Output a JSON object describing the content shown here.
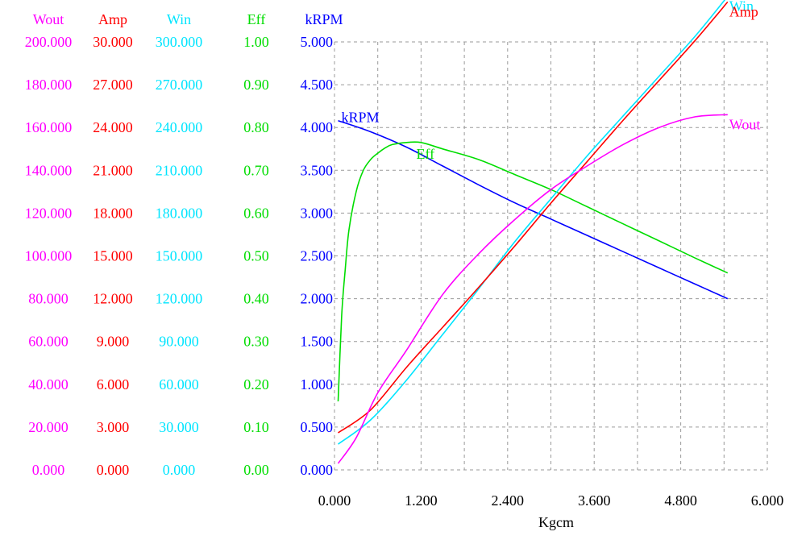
{
  "chart_data": {
    "type": "line",
    "xlabel": "Kgcm",
    "xlim": [
      0,
      6
    ],
    "x_ticks": [
      "0.000",
      "1.200",
      "2.400",
      "3.600",
      "4.800",
      "6.000"
    ],
    "x_tick_values": [
      0,
      1.2,
      2.4,
      3.6,
      4.8,
      6.0
    ],
    "grid": true,
    "axes": [
      {
        "key": "Wout",
        "label": "Wout",
        "color": "#ff00ff",
        "ylim": [
          0,
          200
        ],
        "ticks": [
          "0.000",
          "20.000",
          "40.000",
          "60.000",
          "80.000",
          "100.000",
          "120.000",
          "140.000",
          "160.000",
          "180.000",
          "200.000"
        ]
      },
      {
        "key": "Amp",
        "label": "Amp",
        "color": "#ff0000",
        "ylim": [
          0,
          30
        ],
        "ticks": [
          "0.000",
          "3.000",
          "6.000",
          "9.000",
          "12.000",
          "15.000",
          "18.000",
          "21.000",
          "24.000",
          "27.000",
          "30.000"
        ]
      },
      {
        "key": "Win",
        "label": "Win",
        "color": "#00e5ff",
        "ylim": [
          0,
          300
        ],
        "ticks": [
          "0.000",
          "30.000",
          "60.000",
          "90.000",
          "120.000",
          "150.000",
          "180.000",
          "210.000",
          "240.000",
          "270.000",
          "300.000"
        ]
      },
      {
        "key": "Eff",
        "label": "Eff",
        "color": "#00dd00",
        "ylim": [
          0,
          1
        ],
        "ticks": [
          "0.00",
          "0.10",
          "0.20",
          "0.30",
          "0.40",
          "0.50",
          "0.60",
          "0.70",
          "0.80",
          "0.90",
          "1.00"
        ]
      },
      {
        "key": "kRPM",
        "label": "kRPM",
        "color": "#0000ff",
        "ylim": [
          0,
          5
        ],
        "ticks": [
          "0.000",
          "0.500",
          "1.000",
          "1.500",
          "2.000",
          "2.500",
          "3.000",
          "3.500",
          "4.000",
          "4.500",
          "5.000"
        ]
      }
    ],
    "series": [
      {
        "name": "kRPM",
        "axis": "kRPM",
        "color": "#0000ff",
        "points": [
          [
            0.05,
            4.08
          ],
          [
            0.5,
            3.95
          ],
          [
            1.0,
            3.77
          ],
          [
            1.5,
            3.55
          ],
          [
            2.0,
            3.33
          ],
          [
            2.5,
            3.12
          ],
          [
            3.0,
            2.93
          ],
          [
            3.5,
            2.74
          ],
          [
            4.0,
            2.55
          ],
          [
            4.5,
            2.36
          ],
          [
            5.0,
            2.17
          ],
          [
            5.45,
            2.0
          ]
        ]
      },
      {
        "name": "Eff",
        "axis": "Eff",
        "color": "#00dd00",
        "points": [
          [
            0.05,
            0.16
          ],
          [
            0.1,
            0.36
          ],
          [
            0.15,
            0.47
          ],
          [
            0.2,
            0.56
          ],
          [
            0.3,
            0.65
          ],
          [
            0.4,
            0.7
          ],
          [
            0.5,
            0.725
          ],
          [
            0.6,
            0.74
          ],
          [
            0.7,
            0.752
          ],
          [
            0.8,
            0.76
          ],
          [
            1.0,
            0.765
          ],
          [
            1.2,
            0.765
          ],
          [
            1.5,
            0.75
          ],
          [
            2.0,
            0.725
          ],
          [
            2.5,
            0.69
          ],
          [
            3.0,
            0.655
          ],
          [
            3.5,
            0.615
          ],
          [
            4.0,
            0.575
          ],
          [
            4.5,
            0.535
          ],
          [
            5.0,
            0.495
          ],
          [
            5.45,
            0.46
          ]
        ]
      },
      {
        "name": "Win",
        "axis": "Win",
        "color": "#00e5ff",
        "points": [
          [
            0.05,
            18
          ],
          [
            0.5,
            35
          ],
          [
            1.0,
            63
          ],
          [
            1.5,
            95
          ],
          [
            2.0,
            127
          ],
          [
            2.5,
            160
          ],
          [
            3.0,
            190
          ],
          [
            3.5,
            220
          ],
          [
            4.0,
            248
          ],
          [
            4.5,
            276
          ],
          [
            5.0,
            304
          ],
          [
            5.45,
            332
          ]
        ]
      },
      {
        "name": "Amp",
        "axis": "Amp",
        "color": "#ff0000",
        "points": [
          [
            0.05,
            2.6
          ],
          [
            0.5,
            4.2
          ],
          [
            1.0,
            7.2
          ],
          [
            1.5,
            10.0
          ],
          [
            2.0,
            12.8
          ],
          [
            2.5,
            15.7
          ],
          [
            3.0,
            18.7
          ],
          [
            3.5,
            21.6
          ],
          [
            4.0,
            24.5
          ],
          [
            4.5,
            27.3
          ],
          [
            5.0,
            30.1
          ],
          [
            5.45,
            32.8
          ]
        ]
      },
      {
        "name": "Wout",
        "axis": "Wout",
        "color": "#ff00ff",
        "points": [
          [
            0.05,
            3
          ],
          [
            0.3,
            15
          ],
          [
            0.6,
            36
          ],
          [
            1.0,
            56
          ],
          [
            1.5,
            82
          ],
          [
            2.0,
            101
          ],
          [
            2.5,
            117
          ],
          [
            3.0,
            131
          ],
          [
            3.5,
            142
          ],
          [
            4.0,
            152
          ],
          [
            4.5,
            160
          ],
          [
            5.0,
            165
          ],
          [
            5.45,
            166
          ]
        ]
      }
    ],
    "curve_labels": [
      {
        "text": "kRPM",
        "color": "#0000ff",
        "series": "kRPM",
        "position": "start"
      },
      {
        "text": "Eff",
        "color": "#00dd00",
        "series": "Eff",
        "position": "peak"
      },
      {
        "text": "Win",
        "color": "#00e5ff",
        "series": "Win",
        "position": "end"
      },
      {
        "text": "Amp",
        "color": "#ff0000",
        "series": "Amp",
        "position": "end"
      },
      {
        "text": "Wout",
        "color": "#ff00ff",
        "series": "Wout",
        "position": "end"
      }
    ]
  }
}
